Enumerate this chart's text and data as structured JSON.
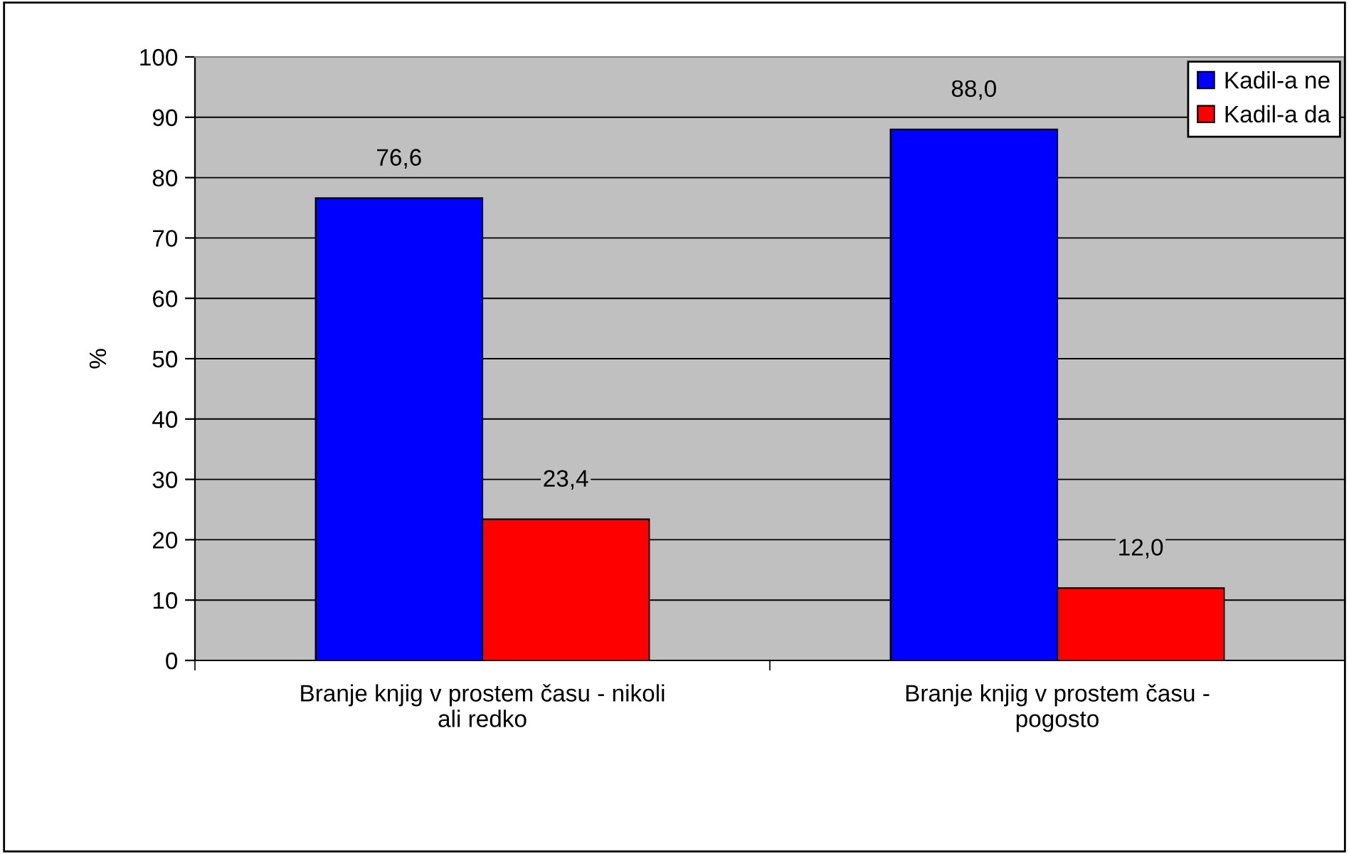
{
  "chart_data": {
    "type": "bar",
    "ylabel": "%",
    "categories": [
      "Branje knjig v prostem času - nikoli\nali redko",
      "Branje knjig v prostem času -\npogosto"
    ],
    "series": [
      {
        "name": "Kadil-a ne",
        "color": "#0000ff",
        "values": [
          76.6,
          88.0
        ],
        "value_labels": [
          "76,6",
          "88,0"
        ]
      },
      {
        "name": "Kadil-a da",
        "color": "#ff0000",
        "values": [
          23.4,
          12.0
        ],
        "value_labels": [
          "23,4",
          "12,0"
        ]
      }
    ],
    "ylim": [
      0,
      100
    ],
    "yticks": [
      0,
      10,
      20,
      30,
      40,
      50,
      60,
      70,
      80,
      90,
      100
    ],
    "grid": "y",
    "legend": "top right"
  }
}
